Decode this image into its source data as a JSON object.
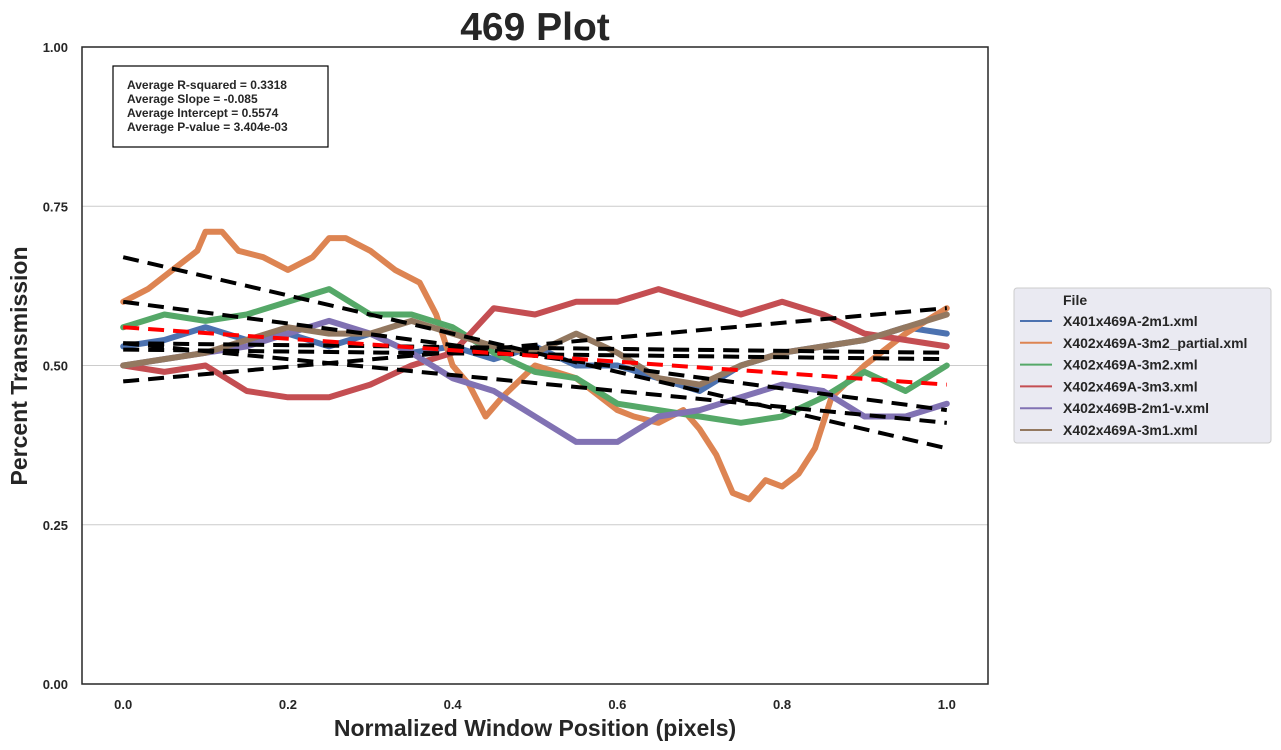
{
  "chart_data": {
    "type": "line",
    "title": "469 Plot",
    "xlabel": "Normalized Window Position (pixels)",
    "ylabel": "Percent Transmission",
    "xlim": [
      -0.05,
      1.05
    ],
    "ylim": [
      0,
      1
    ],
    "x_ticks": [
      0.0,
      0.2,
      0.4,
      0.6,
      0.8,
      1.0
    ],
    "x_tick_labels": [
      "0.0",
      "0.2",
      "0.4",
      "0.6",
      "0.8",
      "1.0"
    ],
    "y_ticks": [
      0.0,
      0.25,
      0.5,
      0.75,
      1.0
    ],
    "y_tick_labels": [
      "0.00",
      "0.25",
      "0.50",
      "0.75",
      "1.00"
    ],
    "grid": "horizontal",
    "stats": [
      "Average R-squared = 0.3318",
      "Average Slope = -0.085",
      "Average Intercept = 0.5574",
      "Average P-value = 3.404e-03"
    ],
    "legend": {
      "title": "File",
      "placement": "outside right"
    },
    "series": [
      {
        "name": "X401x469A-2m1.xml",
        "color": "#4c72b0",
        "x": [
          0.0,
          0.05,
          0.1,
          0.15,
          0.2,
          0.25,
          0.3,
          0.35,
          0.4,
          0.45,
          0.5,
          0.55,
          0.6,
          0.65,
          0.7,
          0.75,
          0.8,
          0.85,
          0.9,
          0.95,
          1.0
        ],
        "y": [
          0.53,
          0.54,
          0.56,
          0.54,
          0.55,
          0.53,
          0.55,
          0.52,
          0.53,
          0.51,
          0.53,
          0.5,
          0.5,
          0.48,
          0.46,
          0.5,
          0.52,
          0.53,
          0.54,
          0.56,
          0.55
        ],
        "fit": [
          0.535,
          0.52
        ]
      },
      {
        "name": "X402x469A-3m2_partial.xml",
        "color": "#dd8452",
        "x": [
          0.0,
          0.03,
          0.06,
          0.09,
          0.1,
          0.12,
          0.14,
          0.17,
          0.2,
          0.23,
          0.25,
          0.27,
          0.3,
          0.33,
          0.36,
          0.38,
          0.4,
          0.42,
          0.44,
          0.46,
          0.5,
          0.55,
          0.6,
          0.62,
          0.65,
          0.68,
          0.7,
          0.72,
          0.74,
          0.76,
          0.78,
          0.8,
          0.82,
          0.84,
          0.86,
          0.9,
          0.95,
          1.0
        ],
        "y": [
          0.6,
          0.62,
          0.65,
          0.68,
          0.71,
          0.71,
          0.68,
          0.67,
          0.65,
          0.67,
          0.7,
          0.7,
          0.68,
          0.65,
          0.63,
          0.58,
          0.5,
          0.47,
          0.42,
          0.45,
          0.5,
          0.48,
          0.43,
          0.42,
          0.41,
          0.43,
          0.4,
          0.36,
          0.3,
          0.29,
          0.32,
          0.31,
          0.33,
          0.37,
          0.45,
          0.5,
          0.55,
          0.59
        ],
        "fit": [
          0.67,
          0.37
        ]
      },
      {
        "name": "X402x469A-3m2.xml",
        "color": "#55a868",
        "x": [
          0.0,
          0.05,
          0.1,
          0.15,
          0.2,
          0.25,
          0.3,
          0.35,
          0.4,
          0.45,
          0.5,
          0.55,
          0.6,
          0.65,
          0.7,
          0.75,
          0.8,
          0.85,
          0.9,
          0.95,
          1.0
        ],
        "y": [
          0.56,
          0.58,
          0.57,
          0.58,
          0.6,
          0.62,
          0.58,
          0.58,
          0.56,
          0.52,
          0.49,
          0.48,
          0.44,
          0.43,
          0.42,
          0.41,
          0.42,
          0.45,
          0.49,
          0.46,
          0.5
        ],
        "fit": [
          0.6,
          0.43
        ]
      },
      {
        "name": "X402x469A-3m3.xml",
        "color": "#c44e52",
        "x": [
          0.0,
          0.05,
          0.1,
          0.15,
          0.2,
          0.25,
          0.3,
          0.35,
          0.4,
          0.45,
          0.5,
          0.55,
          0.6,
          0.65,
          0.7,
          0.75,
          0.8,
          0.85,
          0.9,
          0.95,
          1.0
        ],
        "y": [
          0.5,
          0.49,
          0.5,
          0.46,
          0.45,
          0.45,
          0.47,
          0.5,
          0.52,
          0.59,
          0.58,
          0.6,
          0.6,
          0.62,
          0.6,
          0.58,
          0.6,
          0.58,
          0.55,
          0.54,
          0.53
        ],
        "fit": [
          0.475,
          0.59
        ]
      },
      {
        "name": "X402x469B-2m1-v.xml",
        "color": "#8172b3",
        "x": [
          0.0,
          0.05,
          0.1,
          0.15,
          0.2,
          0.25,
          0.3,
          0.35,
          0.4,
          0.45,
          0.5,
          0.55,
          0.6,
          0.65,
          0.7,
          0.75,
          0.8,
          0.85,
          0.9,
          0.95,
          1.0
        ],
        "y": [
          0.5,
          0.51,
          0.52,
          0.53,
          0.55,
          0.57,
          0.55,
          0.52,
          0.48,
          0.46,
          0.42,
          0.38,
          0.38,
          0.42,
          0.43,
          0.45,
          0.47,
          0.46,
          0.42,
          0.42,
          0.44
        ],
        "fit": [
          0.535,
          0.41
        ]
      },
      {
        "name": "X402x469A-3m1.xml",
        "color": "#937860",
        "x": [
          0.0,
          0.05,
          0.1,
          0.15,
          0.2,
          0.25,
          0.3,
          0.35,
          0.4,
          0.45,
          0.5,
          0.55,
          0.6,
          0.65,
          0.7,
          0.75,
          0.8,
          0.85,
          0.9,
          0.95,
          1.0
        ],
        "y": [
          0.5,
          0.51,
          0.52,
          0.54,
          0.56,
          0.55,
          0.55,
          0.57,
          0.55,
          0.53,
          0.52,
          0.55,
          0.52,
          0.48,
          0.47,
          0.5,
          0.52,
          0.53,
          0.54,
          0.56,
          0.58
        ],
        "fit": [
          0.525,
          0.51
        ]
      }
    ],
    "average_fit": {
      "color": "#ff0000",
      "y": [
        0.56,
        0.47
      ]
    }
  }
}
